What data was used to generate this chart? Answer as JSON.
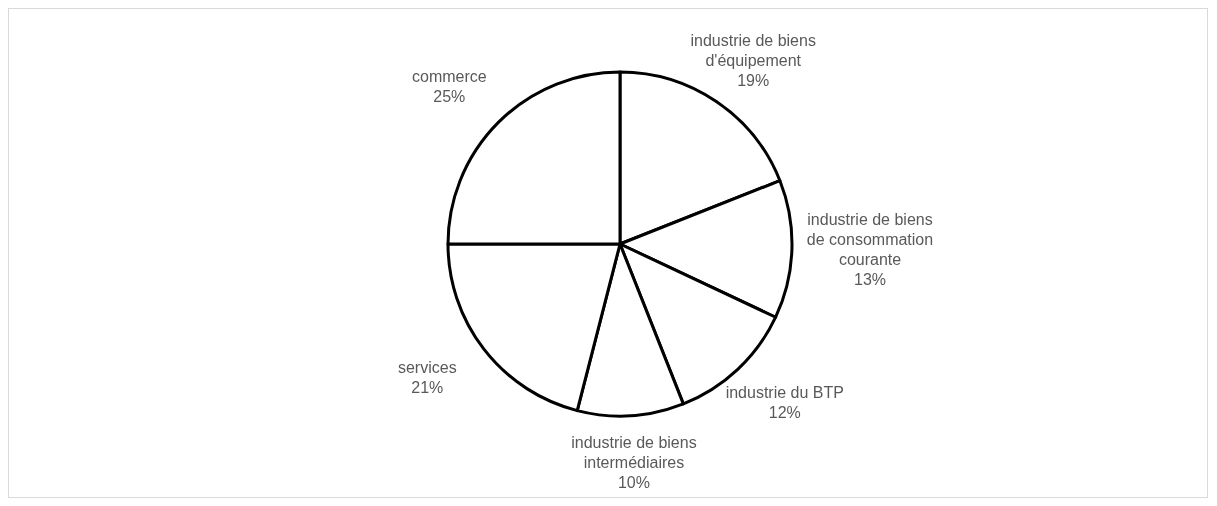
{
  "chart_data": {
    "type": "pie",
    "categories": [
      "industrie de biens d'équipement",
      "industrie de biens de consommation courante",
      "industrie du BTP",
      "industrie de biens intermédiaires",
      "services",
      "commerce"
    ],
    "values": [
      19,
      13,
      12,
      10,
      21,
      25
    ],
    "colors": [
      "#ffffff",
      "#ffffff",
      "#ffffff",
      "#ffffff",
      "#ffffff",
      "#ffffff"
    ],
    "value_labels": [
      "19%",
      "13%",
      "12%",
      "10%",
      "21%",
      "25%"
    ]
  }
}
